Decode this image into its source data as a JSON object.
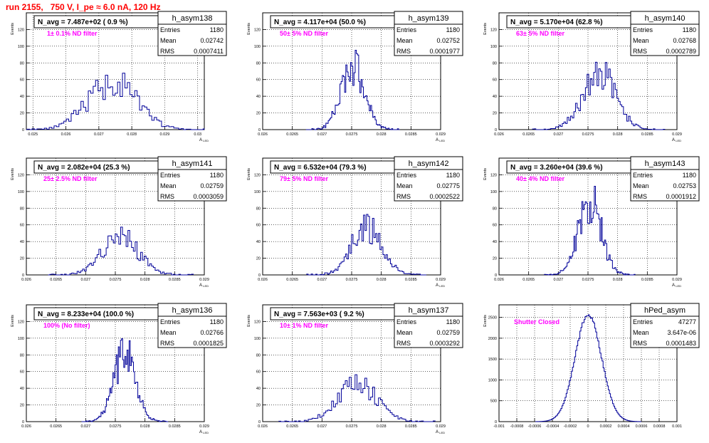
{
  "page": {
    "title": "run 2155,   750 V, I_pe ≈ 6.0 nA, 120 Hz",
    "title_color": "#ff0000",
    "hist_color": "#000099",
    "label_color": "#ff00ff",
    "grid": "dotted"
  },
  "chart_data": [
    {
      "type": "histogram",
      "name": "h_asym138",
      "navg": "N_avg = 7.487e+02 ( 0.9 %)",
      "label": "1± 0.1% ND filter",
      "stats": {
        "Entries": "1180",
        "Mean": "0.02742",
        "RMS": "0.0007411"
      },
      "ylabel": "Events",
      "xlabel_main": "A",
      "xlabel_sub": "LED",
      "xlim": [
        0.0248,
        0.0302
      ],
      "ylim": [
        0,
        140
      ],
      "xticks": [
        0.025,
        0.026,
        0.027,
        0.028,
        0.029,
        0.03
      ],
      "xtick_labels": [
        "0.025",
        "0.026",
        "0.027",
        "0.028",
        "0.029",
        "0.03"
      ],
      "yticks": [
        0,
        20,
        40,
        60,
        80,
        100,
        120,
        140
      ],
      "ytick_labels": [
        "0",
        "20",
        "40",
        "60",
        "80",
        "100",
        "120",
        ""
      ],
      "gauss": {
        "mean": 0.02742,
        "rms": 0.0007411,
        "peak": 56,
        "seed": 11
      }
    },
    {
      "type": "histogram",
      "name": "h_asym139",
      "navg": "N_avg = 4.117e+04 (50.0 %)",
      "label": "50± 5% ND filter",
      "stats": {
        "Entries": "1180",
        "Mean": "0.02752",
        "RMS": "0.0001977"
      },
      "ylabel": "Events",
      "xlabel_main": "A",
      "xlabel_sub": "LED",
      "xlim": [
        0.026,
        0.029
      ],
      "ylim": [
        0,
        140
      ],
      "xticks": [
        0.026,
        0.0265,
        0.027,
        0.0275,
        0.028,
        0.0285,
        0.029
      ],
      "xtick_labels": [
        "0.026",
        "0.0265",
        "0.027",
        "0.0275",
        "0.028",
        "0.0285",
        "0.029"
      ],
      "yticks": [
        0,
        20,
        40,
        60,
        80,
        100,
        120,
        140
      ],
      "ytick_labels": [
        "0",
        "20",
        "40",
        "60",
        "80",
        "100",
        "120",
        ""
      ],
      "gauss": {
        "mean": 0.02752,
        "rms": 0.0001977,
        "peak": 75,
        "seed": 23
      }
    },
    {
      "type": "histogram",
      "name": "h_asym140",
      "navg": "N_avg = 5.170e+04 (62.8 %)",
      "label": "63± 5% ND filter",
      "stats": {
        "Entries": "1180",
        "Mean": "0.02768",
        "RMS": "0.0002789"
      },
      "ylabel": "Events",
      "xlabel_main": "A",
      "xlabel_sub": "LED",
      "xlim": [
        0.026,
        0.029
      ],
      "ylim": [
        0,
        140
      ],
      "xticks": [
        0.026,
        0.0265,
        0.027,
        0.0275,
        0.028,
        0.0285,
        0.029
      ],
      "xtick_labels": [
        "0.026",
        "0.0265",
        "0.027",
        "0.0275",
        "0.028",
        "0.0285",
        "0.029"
      ],
      "yticks": [
        0,
        20,
        40,
        60,
        80,
        100,
        120,
        140
      ],
      "ytick_labels": [
        "0",
        "20",
        "40",
        "60",
        "80",
        "100",
        "120",
        ""
      ],
      "gauss": {
        "mean": 0.02768,
        "rms": 0.0002789,
        "peak": 67,
        "seed": 37
      }
    },
    {
      "type": "histogram",
      "name": "h_asym141",
      "navg": "N_avg = 2.082e+04 (25.3 %)",
      "label": "25± 2.5% ND filter",
      "stats": {
        "Entries": "1180",
        "Mean": "0.02759",
        "RMS": "0.0003059"
      },
      "ylabel": "Events",
      "xlabel_main": "A",
      "xlabel_sub": "LED",
      "xlim": [
        0.026,
        0.029
      ],
      "ylim": [
        0,
        140
      ],
      "xticks": [
        0.026,
        0.0265,
        0.027,
        0.0275,
        0.028,
        0.0285,
        0.029
      ],
      "xtick_labels": [
        "0.026",
        "0.0265",
        "0.027",
        "0.0275",
        "0.028",
        "0.0285",
        "0.029"
      ],
      "yticks": [
        0,
        20,
        40,
        60,
        80,
        100,
        120,
        140
      ],
      "ytick_labels": [
        "0",
        "20",
        "40",
        "60",
        "80",
        "100",
        "120",
        ""
      ],
      "gauss": {
        "mean": 0.02759,
        "rms": 0.0003059,
        "peak": 45,
        "seed": 41
      }
    },
    {
      "type": "histogram",
      "name": "h_asym142",
      "navg": "N_avg = 6.532e+04 (79.3 %)",
      "label": "79± 5% ND filter",
      "stats": {
        "Entries": "1180",
        "Mean": "0.02775",
        "RMS": "0.0002522"
      },
      "ylabel": "Events",
      "xlabel_main": "A",
      "xlabel_sub": "LED",
      "xlim": [
        0.026,
        0.029
      ],
      "ylim": [
        0,
        140
      ],
      "xticks": [
        0.026,
        0.0265,
        0.027,
        0.0275,
        0.028,
        0.0285,
        0.029
      ],
      "xtick_labels": [
        "0.026",
        "0.0265",
        "0.027",
        "0.0275",
        "0.028",
        "0.0285",
        "0.029"
      ],
      "yticks": [
        0,
        20,
        40,
        60,
        80,
        100,
        120,
        140
      ],
      "ytick_labels": [
        "0",
        "20",
        "40",
        "60",
        "80",
        "100",
        "120",
        ""
      ],
      "gauss": {
        "mean": 0.02775,
        "rms": 0.0002522,
        "peak": 58,
        "seed": 53
      }
    },
    {
      "type": "histogram",
      "name": "h_asym143",
      "navg": "N_avg = 3.260e+04 (39.6 %)",
      "label": "40± 4% ND filter",
      "stats": {
        "Entries": "1180",
        "Mean": "0.02753",
        "RMS": "0.0001912"
      },
      "ylabel": "Events",
      "xlabel_main": "A",
      "xlabel_sub": "LED",
      "xlim": [
        0.026,
        0.029
      ],
      "ylim": [
        0,
        140
      ],
      "xticks": [
        0.026,
        0.0265,
        0.027,
        0.0275,
        0.028,
        0.0285,
        0.029
      ],
      "xtick_labels": [
        "0.026",
        "0.0265",
        "0.027",
        "0.0275",
        "0.028",
        "0.0285",
        "0.029"
      ],
      "yticks": [
        0,
        20,
        40,
        60,
        80,
        100,
        120,
        140
      ],
      "ytick_labels": [
        "0",
        "20",
        "40",
        "60",
        "80",
        "100",
        "120",
        ""
      ],
      "gauss": {
        "mean": 0.02753,
        "rms": 0.0001912,
        "peak": 90,
        "seed": 67
      }
    },
    {
      "type": "histogram",
      "name": "h_asym136",
      "navg": "N_avg = 8.233e+04 (100.0 %)",
      "label": "100% (No filter)",
      "stats": {
        "Entries": "1180",
        "Mean": "0.02766",
        "RMS": "0.0001825"
      },
      "ylabel": "Events",
      "xlabel_main": "A",
      "xlabel_sub": "LED",
      "xlim": [
        0.026,
        0.029
      ],
      "ylim": [
        0,
        140
      ],
      "xticks": [
        0.026,
        0.0265,
        0.027,
        0.0275,
        0.028,
        0.0285,
        0.029
      ],
      "xtick_labels": [
        "0.026",
        "0.0265",
        "0.027",
        "0.0275",
        "0.028",
        "0.0285",
        "0.029"
      ],
      "yticks": [
        0,
        20,
        40,
        60,
        80,
        100,
        120,
        140
      ],
      "ytick_labels": [
        "0",
        "20",
        "40",
        "60",
        "80",
        "100",
        "120",
        ""
      ],
      "gauss": {
        "mean": 0.02766,
        "rms": 0.0001825,
        "peak": 83,
        "seed": 79
      }
    },
    {
      "type": "histogram",
      "name": "h_asym137",
      "navg": "N_avg = 7.563e+03 ( 9.2 %)",
      "label": "10± 1% ND filter",
      "stats": {
        "Entries": "1180",
        "Mean": "0.02759",
        "RMS": "0.0003292"
      },
      "ylabel": "Events",
      "xlabel_main": "A",
      "xlabel_sub": "LED",
      "xlim": [
        0.026,
        0.029
      ],
      "ylim": [
        0,
        140
      ],
      "xticks": [
        0.026,
        0.0265,
        0.027,
        0.0275,
        0.028,
        0.0285,
        0.029
      ],
      "xtick_labels": [
        "0.026",
        "0.0265",
        "0.027",
        "0.0275",
        "0.028",
        "0.0285",
        "0.029"
      ],
      "yticks": [
        0,
        20,
        40,
        60,
        80,
        100,
        120,
        140
      ],
      "ytick_labels": [
        "0",
        "20",
        "40",
        "60",
        "80",
        "100",
        "120",
        ""
      ],
      "gauss": {
        "mean": 0.02759,
        "rms": 0.0003292,
        "peak": 45,
        "seed": 97
      }
    },
    {
      "type": "histogram",
      "name": "hPed_asym",
      "navg": "",
      "label": "Shutter Closed",
      "stats": {
        "Entries": "47277",
        "Mean": "3.647e-06",
        "RMS": "0.0001483"
      },
      "ylabel": "Events",
      "xlabel_main": "",
      "xlabel_sub": "",
      "xlim": [
        -0.001,
        0.001
      ],
      "ylim": [
        0,
        2800
      ],
      "xticks": [
        -0.001,
        -0.0008,
        -0.0006,
        -0.0004,
        -0.0002,
        0,
        0.0002,
        0.0004,
        0.0006,
        0.0008,
        0.001
      ],
      "xtick_labels": [
        "-0.001",
        "-0.0008",
        "-0.0006",
        "-0.0004",
        "-0.0002",
        "0",
        "0.0002",
        "0.0004",
        "0.0006",
        "0.0008",
        "0.001"
      ],
      "yticks": [
        0,
        500,
        1000,
        1500,
        2000,
        2500
      ],
      "ytick_labels": [
        "0",
        "500",
        "1000",
        "1500",
        "2000",
        "2500"
      ],
      "gauss": {
        "mean": 3.647e-06,
        "rms": 0.0001483,
        "peak": 2560,
        "seed": 0
      }
    }
  ]
}
